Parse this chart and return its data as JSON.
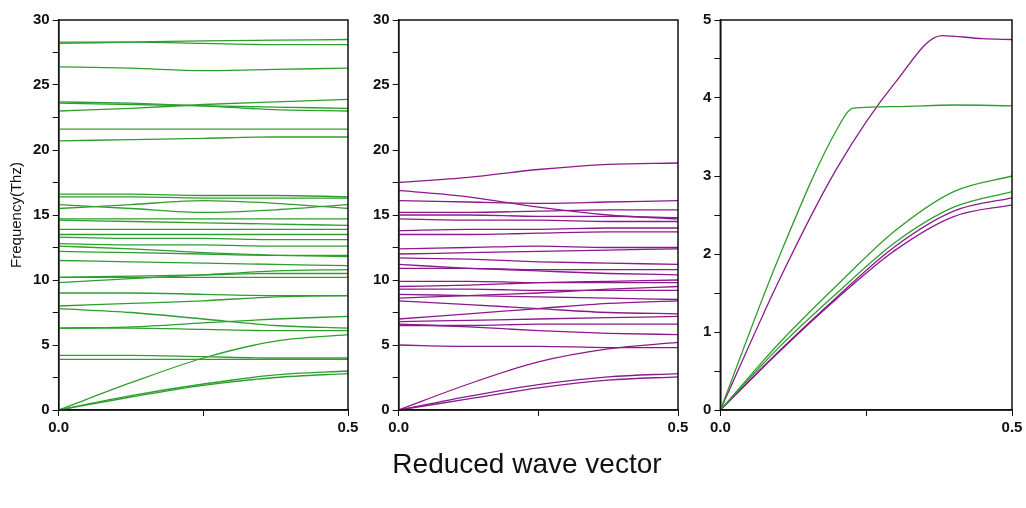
{
  "chart_data": [
    {
      "type": "line",
      "ylabel": "Frequency(Thz)",
      "xlim": [
        0,
        0.5
      ],
      "xticks": [
        {
          "value": 0,
          "label": "0.0"
        },
        {
          "value": 0.25,
          "label": null
        },
        {
          "value": 0.5,
          "label": "0.5"
        }
      ],
      "ylim": [
        0,
        30
      ],
      "yticks": [
        0,
        {
          "value": 2.5,
          "label": null
        },
        5,
        {
          "value": 7.5,
          "label": null
        },
        10,
        {
          "value": 12.5,
          "label": null
        },
        15,
        {
          "value": 17.5,
          "label": null
        },
        20,
        {
          "value": 22.5,
          "label": null
        },
        25,
        {
          "value": 27.5,
          "label": null
        },
        30
      ],
      "grid": false,
      "legend": false,
      "marker": "none",
      "line_style": "solid",
      "x": [
        0,
        0.125,
        0.25,
        0.375,
        0.5
      ],
      "series": [
        {
          "color": "#2e9e2e",
          "values": [
            28.2,
            28.3,
            28.4,
            28.45,
            28.5
          ]
        },
        {
          "color": "#2e9e2e",
          "values": [
            28.3,
            28.3,
            28.2,
            28.1,
            28.1
          ]
        },
        {
          "color": "#2e9e2e",
          "values": [
            26.4,
            26.3,
            26.1,
            26.2,
            26.3
          ]
        },
        {
          "color": "#2e9e2e",
          "values": [
            23.7,
            23.6,
            23.4,
            23.1,
            23.0
          ]
        },
        {
          "color": "#2e9e2e",
          "values": [
            23.0,
            23.2,
            23.5,
            23.7,
            23.9
          ]
        },
        {
          "color": "#2e9e2e",
          "values": [
            23.6,
            23.5,
            23.4,
            23.3,
            23.2
          ]
        },
        {
          "color": "#2e9e2e",
          "values": [
            21.6,
            21.6,
            21.6,
            21.6,
            21.6
          ]
        },
        {
          "color": "#2e9e2e",
          "values": [
            20.7,
            20.8,
            20.9,
            21.0,
            21.0
          ]
        },
        {
          "color": "#2e9e2e",
          "values": [
            16.6,
            16.6,
            16.5,
            16.5,
            16.4
          ]
        },
        {
          "color": "#2e9e2e",
          "values": [
            16.4,
            16.4,
            16.3,
            16.3,
            16.3
          ]
        },
        {
          "color": "#2e9e2e",
          "values": [
            15.8,
            15.5,
            15.2,
            15.4,
            15.8
          ]
        },
        {
          "color": "#2e9e2e",
          "values": [
            15.5,
            15.8,
            16.1,
            15.9,
            15.5
          ]
        },
        {
          "color": "#2e9e2e",
          "values": [
            14.7,
            14.7,
            14.7,
            14.7,
            14.7
          ]
        },
        {
          "color": "#2e9e2e",
          "values": [
            14.6,
            14.5,
            14.4,
            14.3,
            14.2
          ]
        },
        {
          "color": "#2e9e2e",
          "values": [
            13.9,
            13.9,
            13.9,
            13.9,
            13.9
          ]
        },
        {
          "color": "#2e9e2e",
          "values": [
            13.5,
            13.5,
            13.5,
            13.5,
            13.5
          ]
        },
        {
          "color": "#2e9e2e",
          "values": [
            13.3,
            13.2,
            13.2,
            13.1,
            13.1
          ]
        },
        {
          "color": "#2e9e2e",
          "values": [
            12.8,
            12.7,
            12.7,
            12.6,
            12.6
          ]
        },
        {
          "color": "#2e9e2e",
          "values": [
            12.6,
            12.4,
            12.1,
            11.9,
            11.8
          ]
        },
        {
          "color": "#2e9e2e",
          "values": [
            12.2,
            12.1,
            12.0,
            11.9,
            11.9
          ]
        },
        {
          "color": "#2e9e2e",
          "values": [
            11.5,
            11.4,
            11.3,
            11.2,
            11.1
          ]
        },
        {
          "color": "#2e9e2e",
          "values": [
            10.2,
            10.3,
            10.4,
            10.5,
            10.5
          ]
        },
        {
          "color": "#2e9e2e",
          "values": [
            10.2,
            10.2,
            10.2,
            10.2,
            10.2
          ]
        },
        {
          "color": "#2e9e2e",
          "values": [
            9.8,
            10.1,
            10.4,
            10.7,
            10.8
          ]
        },
        {
          "color": "#2e9e2e",
          "values": [
            9.0,
            9.0,
            8.9,
            8.8,
            8.8
          ]
        },
        {
          "color": "#2e9e2e",
          "values": [
            8.0,
            8.2,
            8.4,
            8.7,
            8.8
          ]
        },
        {
          "color": "#2e9e2e",
          "values": [
            7.8,
            7.5,
            7.0,
            6.5,
            6.3
          ]
        },
        {
          "color": "#2e9e2e",
          "values": [
            6.3,
            6.4,
            6.7,
            7.0,
            7.2
          ]
        },
        {
          "color": "#2e9e2e",
          "values": [
            6.3,
            6.3,
            6.2,
            6.1,
            6.1
          ]
        },
        {
          "color": "#2e9e2e",
          "values": [
            4.2,
            4.2,
            4.1,
            4.0,
            4.0
          ]
        },
        {
          "color": "#2e9e2e",
          "values": [
            3.9,
            3.9,
            3.9,
            3.9,
            3.9
          ]
        },
        {
          "color": "#2e9e2e",
          "values": [
            0,
            2.1,
            4.0,
            5.3,
            5.8
          ]
        },
        {
          "color": "#2e9e2e",
          "values": [
            0,
            1.1,
            2.0,
            2.7,
            3.0
          ]
        },
        {
          "color": "#2e9e2e",
          "values": [
            0,
            1.0,
            1.9,
            2.5,
            2.8
          ]
        }
      ]
    },
    {
      "type": "line",
      "xlabel": "Reduced wave vector",
      "xlim": [
        0,
        0.5
      ],
      "xticks": [
        {
          "value": 0,
          "label": "0.0"
        },
        {
          "value": 0.25,
          "label": null
        },
        {
          "value": 0.5,
          "label": "0.5"
        }
      ],
      "ylim": [
        0,
        30
      ],
      "yticks": [
        0,
        {
          "value": 2.5,
          "label": null
        },
        5,
        {
          "value": 7.5,
          "label": null
        },
        10,
        {
          "value": 12.5,
          "label": null
        },
        15,
        {
          "value": 17.5,
          "label": null
        },
        20,
        {
          "value": 22.5,
          "label": null
        },
        25,
        {
          "value": 27.5,
          "label": null
        },
        30
      ],
      "grid": false,
      "legend": false,
      "marker": "none",
      "line_style": "solid",
      "x": [
        0,
        0.125,
        0.25,
        0.375,
        0.5
      ],
      "series": [
        {
          "color": "#8b1a8b",
          "values": [
            17.5,
            17.9,
            18.5,
            18.9,
            19.0
          ]
        },
        {
          "color": "#8b1a8b",
          "values": [
            16.9,
            16.4,
            15.6,
            15.0,
            14.7
          ]
        },
        {
          "color": "#8b1a8b",
          "values": [
            16.1,
            16.0,
            15.9,
            16.0,
            16.1
          ]
        },
        {
          "color": "#8b1a8b",
          "values": [
            15.2,
            15.2,
            15.3,
            15.4,
            15.4
          ]
        },
        {
          "color": "#8b1a8b",
          "values": [
            15.0,
            15.0,
            14.9,
            14.9,
            14.8
          ]
        },
        {
          "color": "#8b1a8b",
          "values": [
            14.7,
            14.6,
            14.6,
            14.5,
            14.5
          ]
        },
        {
          "color": "#8b1a8b",
          "values": [
            13.8,
            13.9,
            13.9,
            14.0,
            14.0
          ]
        },
        {
          "color": "#8b1a8b",
          "values": [
            13.5,
            13.5,
            13.6,
            13.7,
            13.7
          ]
        },
        {
          "color": "#8b1a8b",
          "values": [
            12.4,
            12.5,
            12.6,
            12.5,
            12.5
          ]
        },
        {
          "color": "#8b1a8b",
          "values": [
            12.0,
            12.1,
            12.2,
            12.3,
            12.4
          ]
        },
        {
          "color": "#8b1a8b",
          "values": [
            11.7,
            11.6,
            11.4,
            11.3,
            11.2
          ]
        },
        {
          "color": "#8b1a8b",
          "values": [
            11.2,
            10.9,
            10.7,
            10.5,
            10.4
          ]
        },
        {
          "color": "#8b1a8b",
          "values": [
            10.9,
            10.9,
            10.8,
            10.8,
            10.8
          ]
        },
        {
          "color": "#8b1a8b",
          "values": [
            9.9,
            9.9,
            9.8,
            9.8,
            9.8
          ]
        },
        {
          "color": "#8b1a8b",
          "values": [
            9.5,
            9.6,
            9.8,
            9.9,
            10.0
          ]
        },
        {
          "color": "#8b1a8b",
          "values": [
            9.3,
            9.3,
            9.2,
            9.2,
            9.2
          ]
        },
        {
          "color": "#8b1a8b",
          "values": [
            8.9,
            8.8,
            8.7,
            8.6,
            8.5
          ]
        },
        {
          "color": "#8b1a8b",
          "values": [
            8.6,
            8.8,
            9.0,
            9.3,
            9.5
          ]
        },
        {
          "color": "#8b1a8b",
          "values": [
            7.0,
            7.4,
            7.8,
            8.2,
            8.4
          ]
        },
        {
          "color": "#8b1a8b",
          "values": [
            8.4,
            8.1,
            7.8,
            7.5,
            7.4
          ]
        },
        {
          "color": "#8b1a8b",
          "values": [
            6.8,
            6.9,
            7.0,
            7.1,
            7.2
          ]
        },
        {
          "color": "#8b1a8b",
          "values": [
            6.6,
            6.4,
            6.1,
            5.9,
            5.8
          ]
        },
        {
          "color": "#8b1a8b",
          "values": [
            6.5,
            6.5,
            6.6,
            6.6,
            6.6
          ]
        },
        {
          "color": "#8b1a8b",
          "values": [
            5.0,
            4.9,
            4.9,
            4.8,
            4.8
          ]
        },
        {
          "color": "#8b1a8b",
          "values": [
            0,
            2.0,
            3.7,
            4.7,
            5.2
          ]
        },
        {
          "color": "#8b1a8b",
          "values": [
            0,
            1.05,
            1.95,
            2.55,
            2.8
          ]
        },
        {
          "color": "#8b1a8b",
          "values": [
            0,
            0.85,
            1.7,
            2.3,
            2.55
          ]
        }
      ]
    },
    {
      "type": "line",
      "xlim": [
        0,
        0.5
      ],
      "xticks": [
        {
          "value": 0,
          "label": "0.0"
        },
        {
          "value": 0.25,
          "label": null
        },
        {
          "value": 0.5,
          "label": "0.5"
        }
      ],
      "ylim": [
        0,
        5
      ],
      "yticks": [
        0,
        {
          "value": 0.5,
          "label": null
        },
        1,
        {
          "value": 1.5,
          "label": null
        },
        2,
        {
          "value": 2.5,
          "label": null
        },
        3,
        {
          "value": 3.5,
          "label": null
        },
        4,
        {
          "value": 4.5,
          "label": null
        },
        5
      ],
      "grid": false,
      "legend": false,
      "marker": "none",
      "line_style": "solid",
      "series": [
        {
          "color": "#2e9e2e",
          "x": [
            0,
            0.1,
            0.2,
            0.228,
            0.3,
            0.4,
            0.5
          ],
          "values": [
            0,
            1.95,
            3.6,
            3.87,
            3.89,
            3.91,
            3.9
          ]
        },
        {
          "color": "#8b1a8b",
          "x": [
            0,
            0.1,
            0.2,
            0.3,
            0.38,
            0.45,
            0.5
          ],
          "values": [
            0,
            1.65,
            3.1,
            4.2,
            4.8,
            4.76,
            4.75
          ]
        },
        {
          "color": "#2e9e2e",
          "x": [
            0,
            0.1,
            0.2,
            0.3,
            0.4,
            0.5
          ],
          "values": [
            0,
            0.85,
            1.6,
            2.3,
            2.8,
            3.0
          ]
        },
        {
          "color": "#2e9e2e",
          "x": [
            0,
            0.1,
            0.2,
            0.3,
            0.4,
            0.5
          ],
          "values": [
            0,
            0.8,
            1.5,
            2.15,
            2.6,
            2.8
          ]
        },
        {
          "color": "#8b1a8b",
          "x": [
            0,
            0.1,
            0.2,
            0.3,
            0.4,
            0.5
          ],
          "values": [
            0,
            0.75,
            1.45,
            2.1,
            2.55,
            2.72
          ]
        },
        {
          "color": "#8b1a8b",
          "x": [
            0,
            0.1,
            0.2,
            0.3,
            0.4,
            0.5
          ],
          "values": [
            0,
            0.74,
            1.43,
            2.05,
            2.48,
            2.63
          ]
        }
      ]
    }
  ]
}
